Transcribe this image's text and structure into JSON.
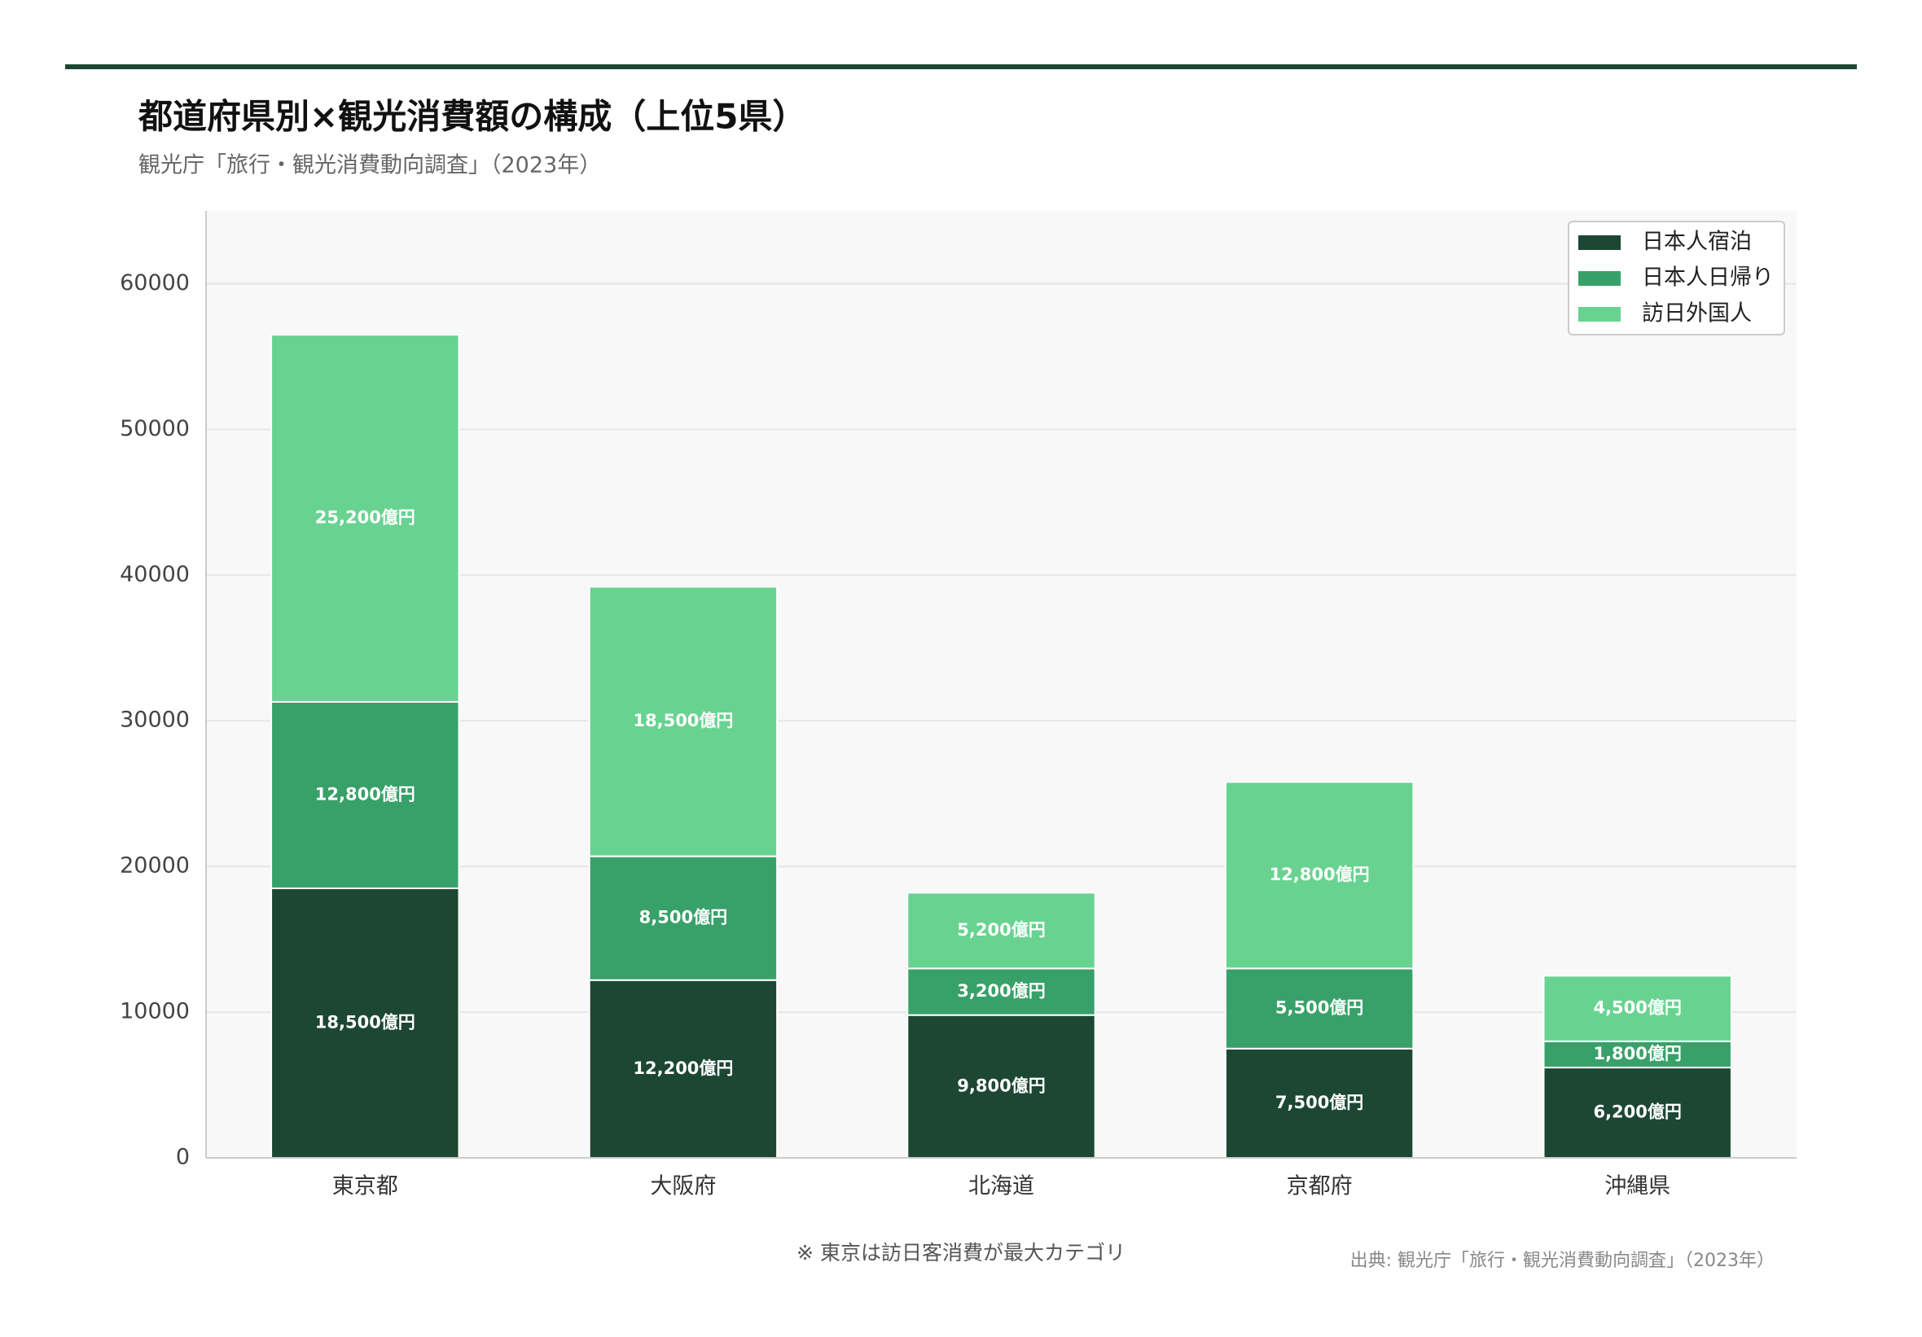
{
  "chart_data": {
    "type": "stacked_bar",
    "title": "都道府県別×観光消費額の構成（上位5県）",
    "subtitle": "観光庁「旅行・観光消費動向調査」（2023年）",
    "note": "※ 東京は訪日客消費が最大カテゴリ",
    "source": "出典: 観光庁「旅行・観光消費動向調査」（2023年）",
    "categories": [
      "東京都",
      "大阪府",
      "北海道",
      "京都府",
      "沖縄県"
    ],
    "series": [
      {
        "name": "日本人宿泊",
        "color": "#1c4733",
        "values": [
          18500,
          12200,
          9800,
          7500,
          6200
        ],
        "value_labels": [
          "18,500億円",
          "12,200億円",
          "9,800億円",
          "7,500億円",
          "6,200億円"
        ]
      },
      {
        "name": "日本人日帰り",
        "color": "#38a169",
        "values": [
          12800,
          8500,
          3200,
          5500,
          1800
        ],
        "value_labels": [
          "12,800億円",
          "8,500億円",
          "3,200億円",
          "5,500億円",
          "1,800億円"
        ]
      },
      {
        "name": "訪日外国人",
        "color": "#68d391",
        "values": [
          25200,
          18500,
          5200,
          12800,
          4500
        ],
        "value_labels": [
          "25,200億円",
          "18,500億円",
          "5,200億円",
          "12,800億円",
          "4,500億円"
        ]
      }
    ],
    "ylim": [
      0,
      65000
    ],
    "yticks": [
      0,
      10000,
      20000,
      30000,
      40000,
      50000,
      60000
    ],
    "grid": true,
    "legend": "upper-right"
  }
}
